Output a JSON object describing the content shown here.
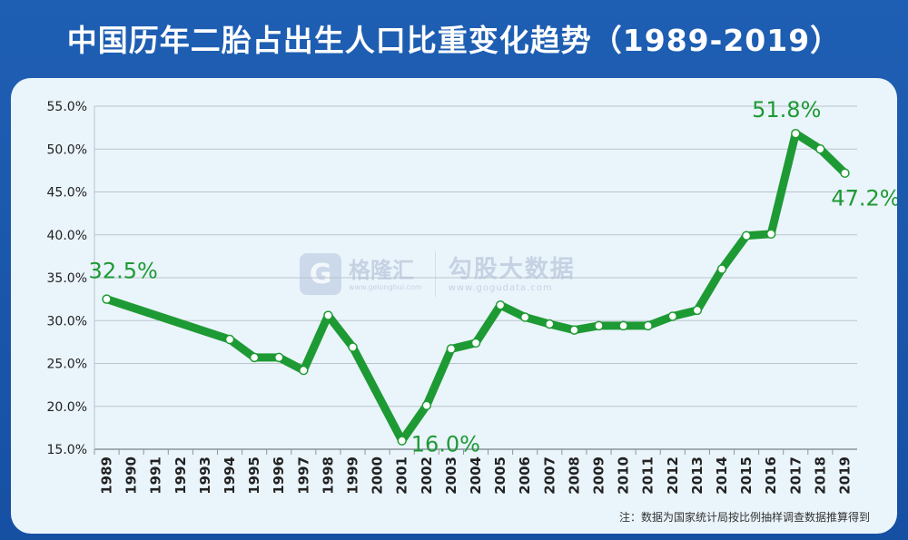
{
  "title": "中国历年二胎占出生人口比重变化趋势（1989-2019）",
  "note": "注：数据为国家统计局按比例抽样调查数据推算得到",
  "watermark": {
    "logo_glyph": "G",
    "left_name": "格隆汇",
    "left_url": "www.gelonghui.com",
    "right_name": "勾股大数据",
    "right_url": "www.gogudata.com"
  },
  "colors": {
    "background": "#1a58ab",
    "card": "#eaf4fb",
    "line": "#1e9a34",
    "label": "#1e9a34",
    "grid": "#b9c3cc",
    "text": "#222222"
  },
  "chart_data": {
    "type": "line",
    "title": "中国历年二胎占出生人口比重变化趋势（1989-2019）",
    "xlabel": "",
    "ylabel": "",
    "x": [
      "1989",
      "1990",
      "1991",
      "1992",
      "1993",
      "1994",
      "1995",
      "1996",
      "1997",
      "1998",
      "1999",
      "2000",
      "2001",
      "2002",
      "2003",
      "2004",
      "2005",
      "2006",
      "2007",
      "2008",
      "2009",
      "2010",
      "2011",
      "2012",
      "2013",
      "2014",
      "2015",
      "2016",
      "2017",
      "2018",
      "2019"
    ],
    "ylim": [
      15,
      55
    ],
    "yticks": [
      15,
      20,
      25,
      30,
      35,
      40,
      45,
      50,
      55
    ],
    "ytick_labels": [
      "15.0%",
      "20.0%",
      "25.0%",
      "30.0%",
      "35.0%",
      "40.0%",
      "45.0%",
      "50.0%",
      "55.0%"
    ],
    "grid": "horizontal",
    "series": [
      {
        "values": [
          {
            "x": "1989",
            "y": 32.5
          },
          {
            "x": "1994",
            "y": 27.8
          },
          {
            "x": "1995",
            "y": 25.7
          },
          {
            "x": "1996",
            "y": 25.7
          },
          {
            "x": "1997",
            "y": 24.2
          },
          {
            "x": "1998",
            "y": 30.6
          },
          {
            "x": "1999",
            "y": 26.9
          },
          {
            "x": "2001",
            "y": 16.0
          },
          {
            "x": "2002",
            "y": 20.1
          },
          {
            "x": "2003",
            "y": 26.7
          },
          {
            "x": "2004",
            "y": 27.4
          },
          {
            "x": "2005",
            "y": 31.8
          },
          {
            "x": "2006",
            "y": 30.4
          },
          {
            "x": "2007",
            "y": 29.6
          },
          {
            "x": "2008",
            "y": 28.9
          },
          {
            "x": "2009",
            "y": 29.4
          },
          {
            "x": "2010",
            "y": 29.4
          },
          {
            "x": "2011",
            "y": 29.4
          },
          {
            "x": "2012",
            "y": 30.5
          },
          {
            "x": "2013",
            "y": 31.2
          },
          {
            "x": "2014",
            "y": 36.0
          },
          {
            "x": "2015",
            "y": 39.9
          },
          {
            "x": "2016",
            "y": 40.1
          },
          {
            "x": "2017",
            "y": 51.8
          },
          {
            "x": "2018",
            "y": 50.0
          },
          {
            "x": "2019",
            "y": 47.2
          }
        ]
      }
    ],
    "annotations": [
      {
        "x": "1989",
        "y": 32.5,
        "text": "32.5%"
      },
      {
        "x": "2001",
        "y": 16.0,
        "text": "16.0%"
      },
      {
        "x": "2017",
        "y": 51.8,
        "text": "51.8%"
      },
      {
        "x": "2019",
        "y": 47.2,
        "text": "47.2%"
      }
    ]
  }
}
